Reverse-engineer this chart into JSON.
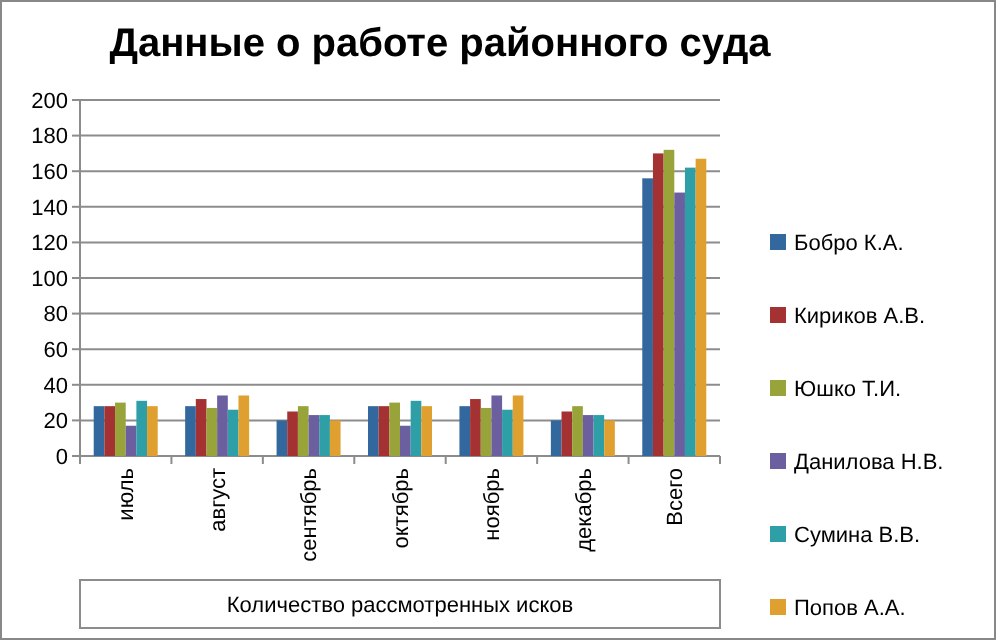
{
  "chart_data": {
    "type": "bar",
    "title": "Данные о работе районного суда",
    "xlabel": "Количество рассмотренных исков",
    "categories": [
      "июль",
      "август",
      "сентябрь",
      "октябрь",
      "ноябрь",
      "декабрь",
      "Всего"
    ],
    "series": [
      {
        "name": "Бобро К.А.",
        "color": "#33689f",
        "values": [
          28,
          28,
          20,
          28,
          28,
          20,
          156
        ]
      },
      {
        "name": "Кириков А.В.",
        "color": "#a53232",
        "values": [
          28,
          32,
          25,
          28,
          32,
          25,
          170
        ]
      },
      {
        "name": "Юшко Т.И.",
        "color": "#98a33a",
        "values": [
          30,
          27,
          28,
          30,
          27,
          28,
          172
        ]
      },
      {
        "name": "Данилова  Н.В.",
        "color": "#6b5fa0",
        "values": [
          17,
          34,
          23,
          17,
          34,
          23,
          148
        ]
      },
      {
        "name": "Сумина  В.В.",
        "color": "#2e9fa6",
        "values": [
          31,
          26,
          23,
          31,
          26,
          23,
          162
        ]
      },
      {
        "name": "Попов А.А.",
        "color": "#e0a030",
        "values": [
          28,
          34,
          20,
          28,
          34,
          20,
          167
        ]
      }
    ],
    "ylim": [
      0,
      200
    ],
    "yticks": [
      0,
      20,
      40,
      60,
      80,
      100,
      120,
      140,
      160,
      180,
      200
    ],
    "grid": "y",
    "legend": "right"
  }
}
